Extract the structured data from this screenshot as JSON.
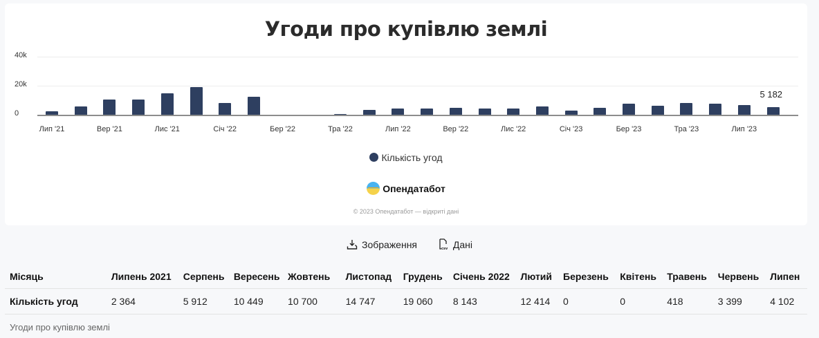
{
  "chart_data": {
    "type": "bar",
    "title": "Угоди про купівлю землі",
    "xlabel": "",
    "ylabel": "",
    "ylim": [
      0,
      40000
    ],
    "yticks": [
      {
        "value": 0,
        "label": "0"
      },
      {
        "value": 20000,
        "label": "20k"
      },
      {
        "value": 40000,
        "label": "40k"
      }
    ],
    "grid": true,
    "legend_position": "bottom",
    "categories": [
      "Лип '21",
      "Сер '21",
      "Вер '21",
      "Жов '21",
      "Лис '21",
      "Гру '21",
      "Січ '22",
      "Лют '22",
      "Бер '22",
      "Кві '22",
      "Тра '22",
      "Чер '22",
      "Лип '22",
      "Сер '22",
      "Вер '22",
      "Жов '22",
      "Лис '22",
      "Гру '22",
      "Січ '23",
      "Лют '23",
      "Бер '23",
      "Кві '23",
      "Тра '23",
      "Чер '23",
      "Лип '23",
      "Сер '23"
    ],
    "x_tick_labels": [
      "Лип '21",
      "Вер '21",
      "Лис '21",
      "Січ '22",
      "Бер '22",
      "Тра '22",
      "Лип '22",
      "Вер '22",
      "Лис '22",
      "Січ '23",
      "Бер '23",
      "Тра '23",
      "Лип '23"
    ],
    "series": [
      {
        "name": "Кількість угод",
        "color": "#2e3f60",
        "values": [
          2364,
          5912,
          10449,
          10700,
          14747,
          19060,
          8143,
          12414,
          0,
          0,
          418,
          3399,
          4102,
          4500,
          4600,
          4500,
          4500,
          5700,
          2900,
          5000,
          7400,
          6300,
          8000,
          7400,
          6700,
          5182
        ]
      }
    ],
    "annotations": [
      {
        "category": "Сер '23",
        "label": "5 182"
      }
    ]
  },
  "chart": {
    "title": "Угоди про купівлю землі",
    "legend_label": "Кількість угод",
    "last_value_label": "5 182",
    "brand": "Опендатабот",
    "copyright": "© 2023 Опендатабот — відкриті дані"
  },
  "actions": {
    "image_label": "Зображення",
    "data_label": "Дані"
  },
  "table": {
    "header_label": "Місяць",
    "row_label": "Кількість угод",
    "columns": [
      "Липень 2021",
      "Серпень",
      "Вересень",
      "Жовтень",
      "Листопад",
      "Грудень",
      "Січень 2022",
      "Лютий",
      "Березень",
      "Квітень",
      "Травень",
      "Червень",
      "Липен"
    ],
    "values": [
      "2 364",
      "5 912",
      "10 449",
      "10 700",
      "14 747",
      "19 060",
      "8 143",
      "12 414",
      "0",
      "0",
      "418",
      "3 399",
      "4 102"
    ],
    "caption": "Угоди про купівлю землі"
  }
}
